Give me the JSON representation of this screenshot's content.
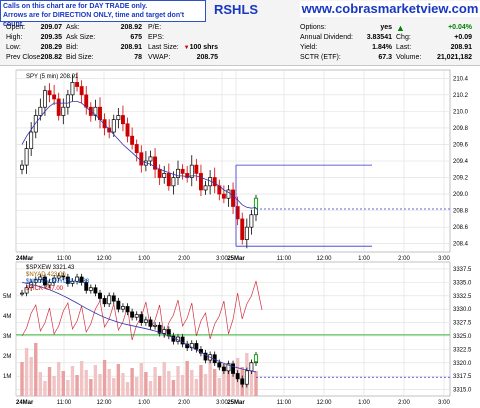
{
  "header": {
    "notice_line1": "Calls on this chart are for DAY TRADE only.",
    "notice_line2": "Arrows are for DIRECTION ONLY, time and target don't count.",
    "ticker_fragment": "RSHLS",
    "site_url": "www.cobrasmarketview.com"
  },
  "quote": {
    "col1": [
      {
        "label": "Open:",
        "value": "209.07"
      },
      {
        "label": "High:",
        "value": "209.35"
      },
      {
        "label": "Low:",
        "value": "208.29"
      },
      {
        "label": "Prev Close:",
        "value": "208.82"
      }
    ],
    "col2": [
      {
        "label": "Ask:",
        "value": "208.92"
      },
      {
        "label": "Ask Size:",
        "value": "675"
      },
      {
        "label": "Bid:",
        "value": "208.91"
      },
      {
        "label": "Bid Size:",
        "value": "78"
      }
    ],
    "col3": [
      {
        "label": "P/E:",
        "value": ""
      },
      {
        "label": "EPS:",
        "value": ""
      },
      {
        "label": "Last Size:",
        "value": "100 shrs"
      },
      {
        "label": "VWAP:",
        "value": "208.75"
      }
    ],
    "col4": [
      {
        "label": "Options:",
        "value": "yes"
      },
      {
        "label": "Annual Dividend:",
        "value": "3.83541"
      },
      {
        "label": "Yield:",
        "value": "1.84%"
      },
      {
        "label": "SCTR (ETF):",
        "value": "67.3"
      }
    ],
    "col5": [
      {
        "label": "",
        "value": "+0.04%"
      },
      {
        "label": "Chg:",
        "value": "+0.09"
      },
      {
        "label": "Last:",
        "value": "208.91"
      },
      {
        "label": "Volume:",
        "value": "21,021,182"
      }
    ],
    "up_color": "#008000",
    "down_color": "#cc0000"
  },
  "chart_data": [
    {
      "type": "candlestick",
      "legend": "SPY (5 min) 208.91",
      "y_ticks": [
        "210.4",
        "210.2",
        "210.0",
        "209.8",
        "209.6",
        "209.4",
        "209.2",
        "209.0",
        "208.8",
        "208.6",
        "208.4"
      ],
      "ylim": [
        208.3,
        210.5
      ],
      "x_ticks": [
        "24Mar",
        "11:00",
        "12:00",
        "1:00",
        "2:00",
        "3:00",
        "25Mar",
        "11:00",
        "12:00",
        "1:00",
        "2:00",
        "3:00"
      ],
      "series": [
        {
          "name": "close",
          "values": [
            209.35,
            209.55,
            209.75,
            209.95,
            210.05,
            210.25,
            210.2,
            210.15,
            209.95,
            210.05,
            210.2,
            210.35,
            210.3,
            210.2,
            210.05,
            209.95,
            210.05,
            209.9,
            209.8,
            209.75,
            209.9,
            209.95,
            209.85,
            209.7,
            209.6,
            209.5,
            209.35,
            209.4,
            209.45,
            209.3,
            209.2,
            209.25,
            209.1,
            209.2,
            209.3,
            209.25,
            209.2,
            209.35,
            209.25,
            209.05,
            209.1,
            209.2,
            209.1,
            209.0,
            208.95,
            209.05,
            208.85,
            208.7,
            208.45,
            208.6,
            208.75,
            208.9
          ]
        },
        {
          "name": "moving-average",
          "values": [
            209.6,
            209.7,
            209.78,
            209.86,
            209.93,
            210.0,
            210.06,
            210.1,
            210.1,
            210.1,
            210.1,
            210.12,
            210.12,
            210.1,
            210.05,
            210.0,
            209.96,
            209.9,
            209.84,
            209.78,
            209.72,
            209.66,
            209.6,
            209.55,
            209.5,
            209.45,
            209.4,
            209.38,
            209.36,
            209.33,
            209.3,
            209.28,
            209.26,
            209.24,
            209.22,
            209.22,
            209.21,
            209.22,
            209.22,
            209.2,
            209.18,
            209.16,
            209.13,
            209.1,
            209.05,
            209.02,
            208.98,
            208.93,
            208.87,
            208.84,
            208.83,
            208.84
          ]
        }
      ],
      "levels": [
        209.35,
        208.82,
        208.37
      ]
    },
    {
      "type": "candlestick",
      "legend": [
        "$SPXEW 3321.43",
        "$NYAD 423.00",
        "$NYUPV:$NYDNV 1.33",
        "$TICK 497.00"
      ],
      "y_ticks": [
        "3337.5",
        "3335.0",
        "3332.5",
        "3330.0",
        "3327.5",
        "3325.0",
        "3322.5",
        "3320.0",
        "3317.5",
        "3315.0"
      ],
      "ylim": [
        3313.8,
        3338.8
      ],
      "volume_ticks": [
        "5M",
        "4M",
        "3M",
        "2M",
        "1M"
      ],
      "x_ticks": [
        "24Mar",
        "11:00",
        "12:00",
        "1:00",
        "2:00",
        "3:00",
        "25Mar",
        "11:00",
        "12:00",
        "1:00",
        "2:00",
        "3:00"
      ],
      "levels": [
        3325.2,
        3317.3
      ]
    }
  ]
}
